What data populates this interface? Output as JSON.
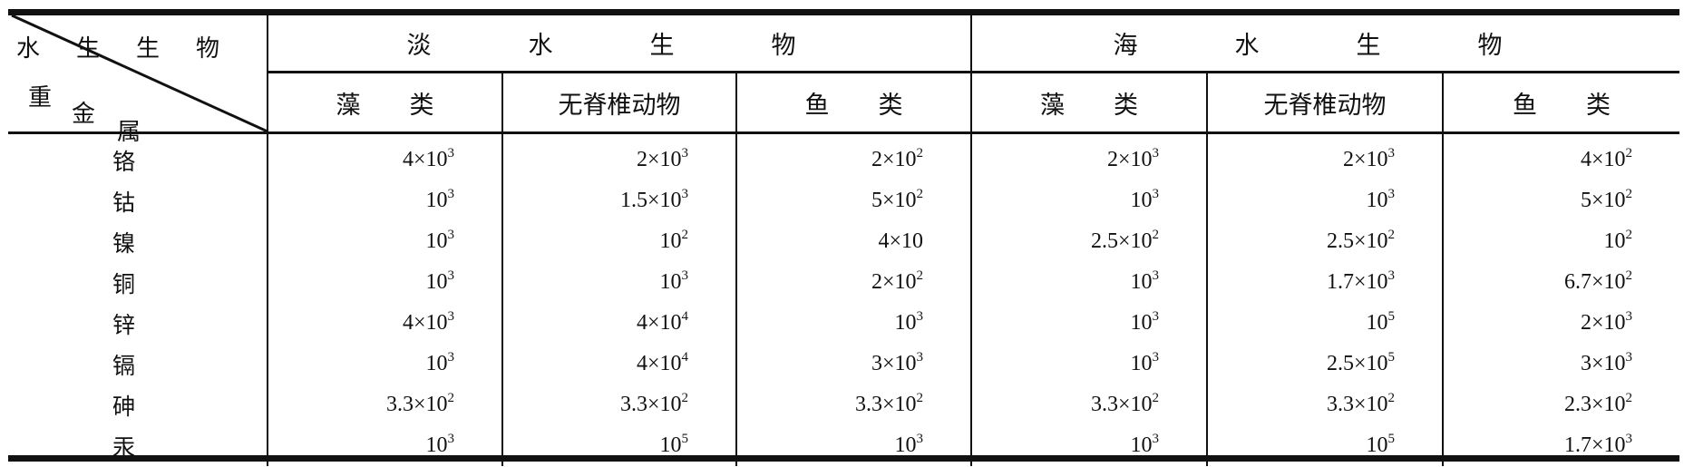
{
  "corner": {
    "top_label": "水生生物",
    "side_chars": [
      "重",
      "金",
      "属"
    ]
  },
  "groups": [
    "淡　水　生　物",
    "海　水　生　物"
  ],
  "subheaders": [
    "藻　　类",
    "无脊椎动物",
    "鱼　　类",
    "藻　　类",
    "无脊椎动物",
    "鱼　　类"
  ],
  "rows": [
    {
      "metal": "铬",
      "cells": [
        {
          "b": "4×10",
          "e": "3"
        },
        {
          "b": "2×10",
          "e": "3"
        },
        {
          "b": "2×10",
          "e": "2"
        },
        {
          "b": "2×10",
          "e": "3"
        },
        {
          "b": "2×10",
          "e": "3"
        },
        {
          "b": "4×10",
          "e": "2"
        }
      ]
    },
    {
      "metal": "钴",
      "cells": [
        {
          "b": "10",
          "e": "3"
        },
        {
          "b": "1.5×10",
          "e": "3"
        },
        {
          "b": "5×10",
          "e": "2"
        },
        {
          "b": "10",
          "e": "3"
        },
        {
          "b": "10",
          "e": "3"
        },
        {
          "b": "5×10",
          "e": "2"
        }
      ]
    },
    {
      "metal": "镍",
      "cells": [
        {
          "b": "10",
          "e": "3"
        },
        {
          "b": "10",
          "e": "2"
        },
        {
          "b": "4×10",
          "e": ""
        },
        {
          "b": "2.5×10",
          "e": "2"
        },
        {
          "b": "2.5×10",
          "e": "2"
        },
        {
          "b": "10",
          "e": "2"
        }
      ]
    },
    {
      "metal": "铜",
      "cells": [
        {
          "b": "10",
          "e": "3"
        },
        {
          "b": "10",
          "e": "3"
        },
        {
          "b": "2×10",
          "e": "2"
        },
        {
          "b": "10",
          "e": "3"
        },
        {
          "b": "1.7×10",
          "e": "3"
        },
        {
          "b": "6.7×10",
          "e": "2"
        }
      ]
    },
    {
      "metal": "锌",
      "cells": [
        {
          "b": "4×10",
          "e": "3"
        },
        {
          "b": "4×10",
          "e": "4"
        },
        {
          "b": "10",
          "e": "3"
        },
        {
          "b": "10",
          "e": "3"
        },
        {
          "b": "10",
          "e": "5"
        },
        {
          "b": "2×10",
          "e": "3"
        }
      ]
    },
    {
      "metal": "镉",
      "cells": [
        {
          "b": "10",
          "e": "3"
        },
        {
          "b": "4×10",
          "e": "4"
        },
        {
          "b": "3×10",
          "e": "3"
        },
        {
          "b": "10",
          "e": "3"
        },
        {
          "b": "2.5×10",
          "e": "5"
        },
        {
          "b": "3×10",
          "e": "3"
        }
      ]
    },
    {
      "metal": "砷",
      "cells": [
        {
          "b": "3.3×10",
          "e": "2"
        },
        {
          "b": "3.3×10",
          "e": "2"
        },
        {
          "b": "3.3×10",
          "e": "2"
        },
        {
          "b": "3.3×10",
          "e": "2"
        },
        {
          "b": "3.3×10",
          "e": "2"
        },
        {
          "b": "2.3×10",
          "e": "2"
        }
      ]
    },
    {
      "metal": "汞",
      "cells": [
        {
          "b": "10",
          "e": "3"
        },
        {
          "b": "10",
          "e": "5"
        },
        {
          "b": "10",
          "e": "3"
        },
        {
          "b": "10",
          "e": "3"
        },
        {
          "b": "10",
          "e": "5"
        },
        {
          "b": "1.7×10",
          "e": "3"
        }
      ]
    }
  ]
}
